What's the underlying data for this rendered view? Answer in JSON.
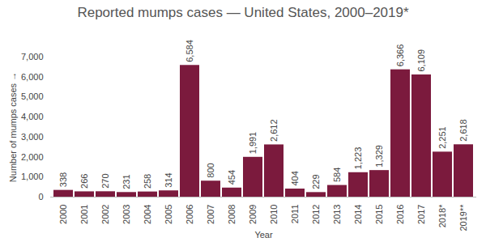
{
  "chart_data": {
    "type": "bar",
    "title": "Reported mumps cases — United States, 2000–2019*",
    "x_label": "Year",
    "y_label": "Number of mumps cases",
    "categories": [
      "2000",
      "2001",
      "2002",
      "2003",
      "2004",
      "2005",
      "2006",
      "2007",
      "2008",
      "2009",
      "2010",
      "2011",
      "2012",
      "2013",
      "2014",
      "2015",
      "2016",
      "2017",
      "2018*",
      "2019**"
    ],
    "values": [
      338,
      266,
      270,
      231,
      258,
      314,
      6584,
      800,
      454,
      1991,
      2612,
      404,
      229,
      584,
      1223,
      1329,
      6366,
      6109,
      2251,
      2618
    ],
    "value_labels": [
      "338",
      "266",
      "270",
      "231",
      "258",
      "314",
      "6,584",
      "800",
      "454",
      "1,991",
      "2,612",
      "404",
      "229",
      "584",
      "1,223",
      "1,329",
      "6,366",
      "6,109",
      "2,251",
      "2,618"
    ],
    "color": "#7b1a3d",
    "ylim": [
      0,
      7000
    ],
    "yticks": [
      0,
      {
        "value": 1000,
        "label": "1,000"
      },
      {
        "value": 2000,
        "label": "2,000"
      },
      {
        "value": 3000,
        "label": "3,000"
      },
      {
        "value": 4000,
        "label": "4,000"
      },
      {
        "value": 5000,
        "label": "5,000"
      },
      {
        "value": 6000,
        "label": "6,000"
      },
      {
        "value": 7000,
        "label": "7,000"
      }
    ],
    "grid": false,
    "data_labels": true
  }
}
